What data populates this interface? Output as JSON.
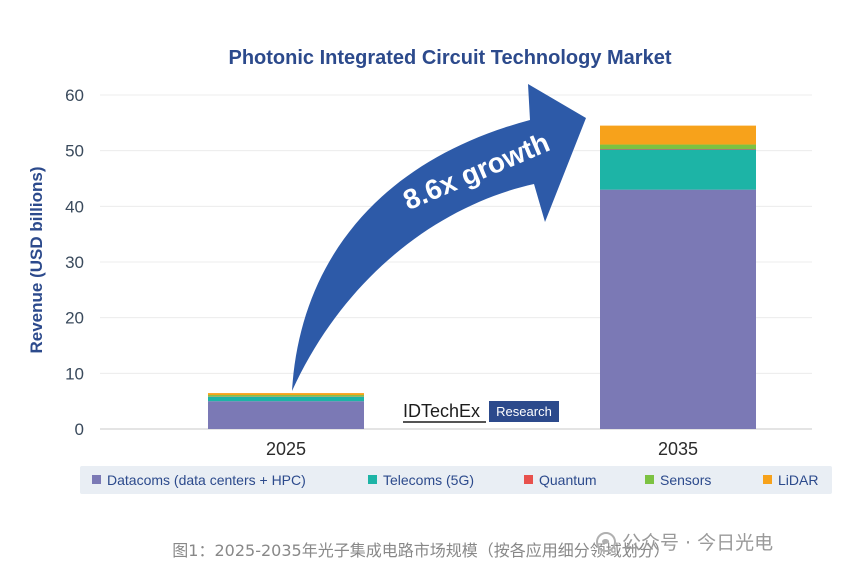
{
  "chart_data": {
    "type": "bar",
    "stacked": true,
    "title": "Photonic Integrated Circuit Technology Market",
    "ylabel": "Revenue (USD billions)",
    "xlabel": "",
    "categories": [
      "2025",
      "2035"
    ],
    "ylim": [
      0,
      60
    ],
    "yticks": [
      "0",
      "10",
      "20",
      "30",
      "40",
      "50",
      "60"
    ],
    "grid": true,
    "legend_position": "bottom",
    "series": [
      {
        "name": "Datacoms (data centers + HPC)",
        "values": [
          5.0,
          43.0
        ],
        "color": "#7b79b5"
      },
      {
        "name": "Telecoms (5G)",
        "values": [
          0.8,
          7.2
        ],
        "color": "#1db4a6"
      },
      {
        "name": "Quantum",
        "values": [
          0.05,
          0.1
        ],
        "color": "#e8514d"
      },
      {
        "name": "Sensors",
        "values": [
          0.25,
          0.8
        ],
        "color": "#7cc242"
      },
      {
        "name": "LiDAR",
        "values": [
          0.35,
          3.4
        ],
        "color": "#f7a21b"
      }
    ],
    "annotation": "8.6x growth",
    "annotation_color": "#2d5aa8"
  },
  "logo": {
    "name": "IDTechEx",
    "tag": "Research"
  },
  "caption": "图1：2025-2035年光子集成电路市场规模（按各应用细分领域划分）",
  "watermark": "公众号 · 今日光电"
}
